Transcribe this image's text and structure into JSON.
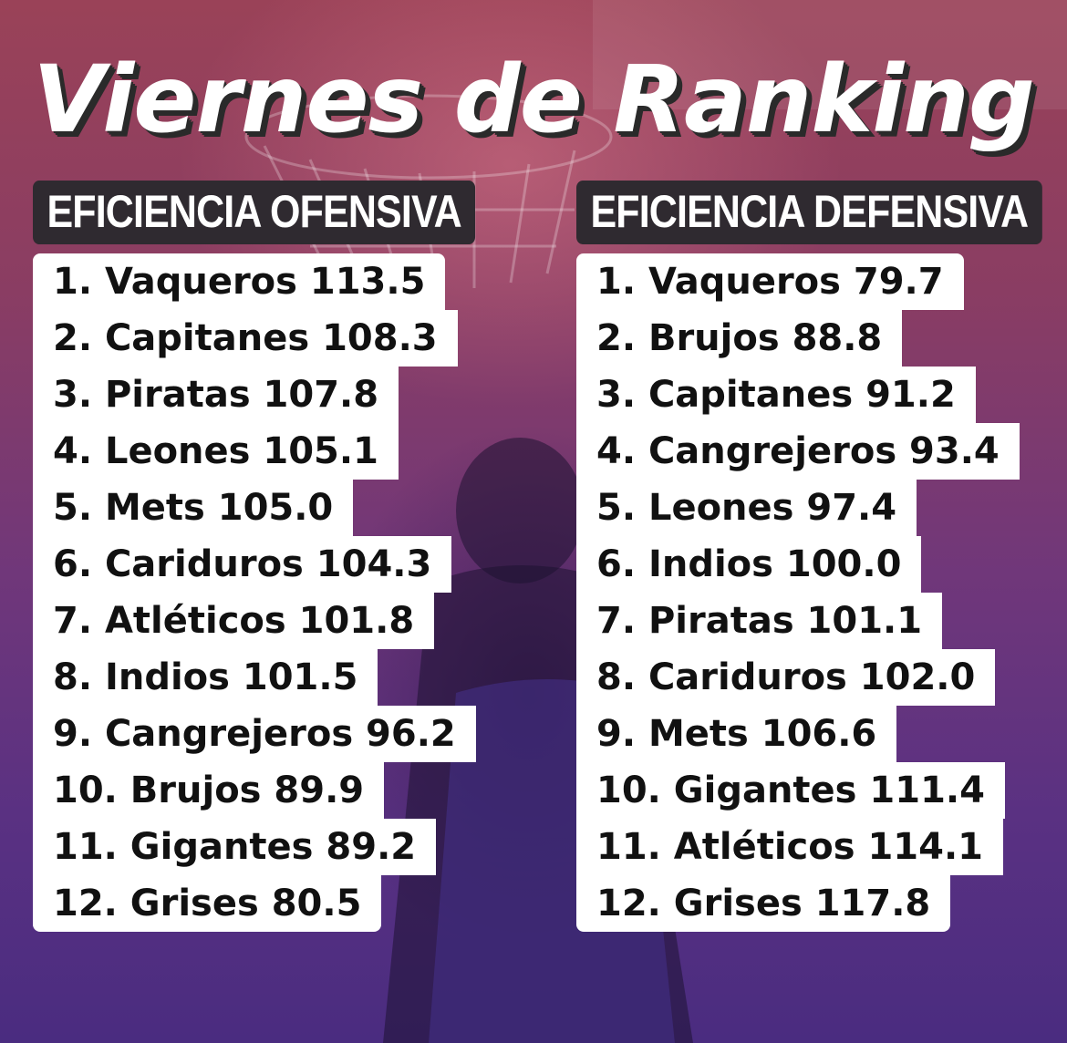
{
  "title": "Viernes de Ranking",
  "offense": {
    "header": "EFICIENCIA OFENSIVA",
    "rows": [
      "1. Vaqueros 113.5",
      "2. Capitanes 108.3",
      "3. Piratas 107.8",
      "4. Leones 105.1",
      "5. Mets 105.0",
      "6. Cariduros 104.3",
      "7. Atléticos 101.8",
      "8. Indios 101.5",
      "9. Cangrejeros 96.2",
      "10. Brujos 89.9",
      "11. Gigantes 89.2",
      "12. Grises 80.5"
    ]
  },
  "defense": {
    "header": "EFICIENCIA DEFENSIVA",
    "rows": [
      "1. Vaqueros 79.7",
      "2. Brujos 88.8",
      "3. Capitanes 91.2",
      "4. Cangrejeros 93.4",
      "5. Leones 97.4",
      "6. Indios 100.0",
      "7. Piratas 101.1",
      "8. Cariduros 102.0",
      "9. Mets 106.6",
      "10. Gigantes 111.4",
      "11. Atléticos 114.1",
      "12. Grises 117.8"
    ]
  }
}
